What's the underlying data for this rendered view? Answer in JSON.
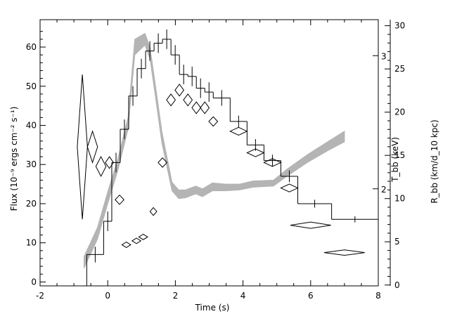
{
  "chart_data": {
    "type": "line",
    "title": "",
    "xlabel": "Time (s)",
    "ylabel_left": "Flux (10⁻⁹ ergs cm⁻² s⁻¹)",
    "ylabel_right_temperature": "T_bb (keV)",
    "ylabel_right_radius": "R_bb (km/d_10 kpc)",
    "xlim": [
      -2,
      8
    ],
    "ylim_left": [
      -1,
      67
    ],
    "ylim_right_radius": [
      -0.1,
      30.7
    ],
    "grid": false,
    "legend": "none",
    "x_ticks": [
      "-2",
      "0",
      "2",
      "4",
      "6",
      "8"
    ],
    "y_left_ticks": [
      "0",
      "10",
      "20",
      "30",
      "40",
      "50",
      "60"
    ],
    "y_right_radius_ticks": [
      "0",
      "5",
      "10",
      "15",
      "20",
      "25",
      "30"
    ],
    "y_right_temperature_ticks": [
      "2",
      "3"
    ],
    "temperature_tick_positions_in_flux_units": [
      23.8,
      57.8
    ],
    "series": [
      {
        "style": "step histogram",
        "points": [
          {
            "x0": -0.62,
            "x1": -0.12,
            "y": 7.0,
            "ylo": 5.0,
            "yhi": 9.0
          },
          {
            "x0": -0.12,
            "x1": 0.12,
            "y": 15.5,
            "ylo": 13.0,
            "yhi": 18.0
          },
          {
            "x0": 0.12,
            "x1": 0.37,
            "y": 30.5,
            "ylo": 28.0,
            "yhi": 33.0
          },
          {
            "x0": 0.37,
            "x1": 0.62,
            "y": 39.0,
            "ylo": 36.5,
            "yhi": 41.5
          },
          {
            "x0": 0.62,
            "x1": 0.87,
            "y": 47.5,
            "ylo": 45.0,
            "yhi": 50.0
          },
          {
            "x0": 0.87,
            "x1": 1.12,
            "y": 54.5,
            "ylo": 52.0,
            "yhi": 57.0
          },
          {
            "x0": 1.12,
            "x1": 1.37,
            "y": 59.0,
            "ylo": 56.5,
            "yhi": 61.5
          },
          {
            "x0": 1.37,
            "x1": 1.62,
            "y": 61.0,
            "ylo": 58.5,
            "yhi": 63.5
          },
          {
            "x0": 1.62,
            "x1": 1.87,
            "y": 62.0,
            "ylo": 59.5,
            "yhi": 64.5
          },
          {
            "x0": 1.87,
            "x1": 2.12,
            "y": 58.0,
            "ylo": 55.5,
            "yhi": 60.5
          },
          {
            "x0": 2.12,
            "x1": 2.37,
            "y": 53.0,
            "ylo": 50.5,
            "yhi": 55.5
          },
          {
            "x0": 2.37,
            "x1": 2.62,
            "y": 52.5,
            "ylo": 50.0,
            "yhi": 55.0
          },
          {
            "x0": 2.62,
            "x1": 2.87,
            "y": 49.5,
            "ylo": 47.0,
            "yhi": 52.0
          },
          {
            "x0": 2.87,
            "x1": 3.12,
            "y": 48.5,
            "ylo": 46.0,
            "yhi": 51.0
          },
          {
            "x0": 3.12,
            "x1": 3.62,
            "y": 47.0,
            "ylo": 45.0,
            "yhi": 49.0
          },
          {
            "x0": 3.62,
            "x1": 4.12,
            "y": 41.0,
            "ylo": 39.5,
            "yhi": 42.5
          },
          {
            "x0": 4.12,
            "x1": 4.62,
            "y": 35.0,
            "ylo": 33.5,
            "yhi": 36.5
          },
          {
            "x0": 4.62,
            "x1": 5.12,
            "y": 31.0,
            "ylo": 29.5,
            "yhi": 32.5
          },
          {
            "x0": 5.12,
            "x1": 5.62,
            "y": 27.0,
            "ylo": 25.5,
            "yhi": 28.5
          },
          {
            "x0": 5.62,
            "x1": 6.62,
            "y": 20.0,
            "ylo": 19.0,
            "yhi": 21.0
          },
          {
            "x0": 6.62,
            "x1": 8.0,
            "y": 16.0,
            "ylo": 15.2,
            "yhi": 16.8
          }
        ]
      },
      {
        "style": "diamonds",
        "points": [
          {
            "x": -0.75,
            "y": 34.5,
            "dx": 0.15,
            "dy": 18.5
          },
          {
            "x": -0.45,
            "y": 34.5,
            "dx": 0.15,
            "dy": 4.0
          },
          {
            "x": -0.2,
            "y": 29.5,
            "dx": 0.15,
            "dy": 2.5
          },
          {
            "x": 0.05,
            "y": 30.5,
            "dx": 0.12,
            "dy": 1.5
          },
          {
            "x": 0.35,
            "y": 21.0,
            "dx": 0.13,
            "dy": 1.2
          },
          {
            "x": 0.55,
            "y": 9.5,
            "dx": 0.13,
            "dy": 0.7
          },
          {
            "x": 0.85,
            "y": 10.5,
            "dx": 0.13,
            "dy": 0.7
          },
          {
            "x": 1.05,
            "y": 11.5,
            "dx": 0.13,
            "dy": 0.7
          },
          {
            "x": 1.35,
            "y": 18.0,
            "dx": 0.1,
            "dy": 1.0
          },
          {
            "x": 1.62,
            "y": 30.5,
            "dx": 0.13,
            "dy": 1.2
          },
          {
            "x": 1.87,
            "y": 46.5,
            "dx": 0.13,
            "dy": 1.5
          },
          {
            "x": 2.12,
            "y": 49.0,
            "dx": 0.13,
            "dy": 1.5
          },
          {
            "x": 2.37,
            "y": 46.5,
            "dx": 0.13,
            "dy": 1.5
          },
          {
            "x": 2.62,
            "y": 44.5,
            "dx": 0.13,
            "dy": 1.5
          },
          {
            "x": 2.87,
            "y": 44.5,
            "dx": 0.13,
            "dy": 1.5
          },
          {
            "x": 3.12,
            "y": 41.0,
            "dx": 0.13,
            "dy": 1.2
          },
          {
            "x": 3.87,
            "y": 38.5,
            "dx": 0.25,
            "dy": 1.0
          },
          {
            "x": 4.37,
            "y": 33.0,
            "dx": 0.25,
            "dy": 1.0
          },
          {
            "x": 4.87,
            "y": 30.5,
            "dx": 0.25,
            "dy": 1.0
          },
          {
            "x": 5.37,
            "y": 24.0,
            "dx": 0.25,
            "dy": 1.0
          },
          {
            "x": 6.0,
            "y": 14.5,
            "dx": 0.6,
            "dy": 0.8
          },
          {
            "x": 7.0,
            "y": 7.5,
            "dx": 0.6,
            "dy": 0.7
          }
        ]
      },
      {
        "style": "gray band",
        "color": "#b4b4b4",
        "points": [
          {
            "x": -0.7,
            "ylo": 3.5,
            "yhi": 6.5
          },
          {
            "x": -0.3,
            "ylo": 11.0,
            "yhi": 14.0
          },
          {
            "x": 0.0,
            "ylo": 20.0,
            "yhi": 23.0
          },
          {
            "x": 0.3,
            "ylo": 28.5,
            "yhi": 31.5
          },
          {
            "x": 0.6,
            "ylo": 39.0,
            "yhi": 42.0
          },
          {
            "x": 0.8,
            "ylo": 58.0,
            "yhi": 62.0
          },
          {
            "x": 1.1,
            "ylo": 60.5,
            "yhi": 63.5
          },
          {
            "x": 1.25,
            "ylo": 57.0,
            "yhi": 60.0
          },
          {
            "x": 1.4,
            "ylo": 48.0,
            "yhi": 51.0
          },
          {
            "x": 1.6,
            "ylo": 35.5,
            "yhi": 38.5
          },
          {
            "x": 1.9,
            "ylo": 23.3,
            "yhi": 25.5
          },
          {
            "x": 2.1,
            "ylo": 21.3,
            "yhi": 23.5
          },
          {
            "x": 2.3,
            "ylo": 21.5,
            "yhi": 23.5
          },
          {
            "x": 2.6,
            "ylo": 22.5,
            "yhi": 24.5
          },
          {
            "x": 2.8,
            "ylo": 21.8,
            "yhi": 23.8
          },
          {
            "x": 3.1,
            "ylo": 23.3,
            "yhi": 25.3
          },
          {
            "x": 3.5,
            "ylo": 23.3,
            "yhi": 25.0
          },
          {
            "x": 3.9,
            "ylo": 23.5,
            "yhi": 25.0
          },
          {
            "x": 4.3,
            "ylo": 24.2,
            "yhi": 25.8
          },
          {
            "x": 4.9,
            "ylo": 24.5,
            "yhi": 26.0
          },
          {
            "x": 5.3,
            "ylo": 27.0,
            "yhi": 28.8
          },
          {
            "x": 5.9,
            "ylo": 30.5,
            "yhi": 32.5
          },
          {
            "x": 6.5,
            "ylo": 33.5,
            "yhi": 35.8
          },
          {
            "x": 7.0,
            "ylo": 35.8,
            "yhi": 38.5
          }
        ]
      }
    ]
  }
}
